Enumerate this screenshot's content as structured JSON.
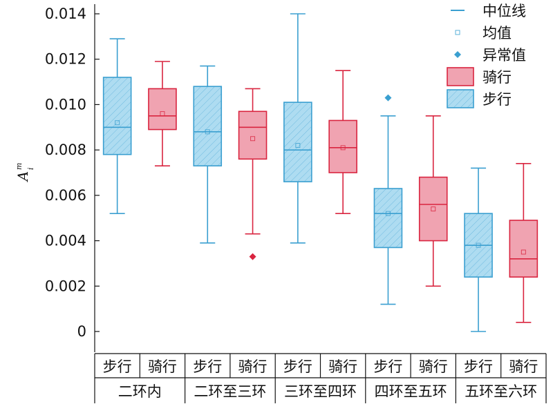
{
  "chart_data": {
    "type": "box",
    "ylabel": {
      "base": "A",
      "sup": "m",
      "sub": "i"
    },
    "ylim": [
      -0.0008,
      0.014
    ],
    "yticks": [
      "0.014",
      "0.012",
      "0.010",
      "0.008",
      "0.006",
      "0.004",
      "0.002",
      "0"
    ],
    "ytick_values": [
      0.014,
      0.012,
      0.01,
      0.008,
      0.006,
      0.004,
      0.002,
      0
    ],
    "series_colors": {
      "步行": {
        "fill": "#aedcf1",
        "stroke": "#3a9fd0",
        "hatch": true
      },
      "骑行": {
        "fill": "#f0a3b1",
        "stroke": "#d9243f",
        "hatch": false
      }
    },
    "legend": [
      {
        "label": "中位线",
        "kind": "median-line",
        "color": "#3a9fd0"
      },
      {
        "label": "均值",
        "kind": "mean-square",
        "color": "#5ab0d8"
      },
      {
        "label": "异常值",
        "kind": "outlier-diamond",
        "color": "#3a9fd0"
      },
      {
        "label": "骑行",
        "kind": "box",
        "series": "骑行"
      },
      {
        "label": "步行",
        "kind": "box",
        "series": "步行"
      }
    ],
    "groups": [
      {
        "label": "二环内",
        "members": [
          "步行",
          "骑行"
        ]
      },
      {
        "label": "二环至三环",
        "members": [
          "步行",
          "骑行"
        ]
      },
      {
        "label": "三环至四环",
        "members": [
          "步行",
          "骑行"
        ]
      },
      {
        "label": "四环至五环",
        "members": [
          "步行",
          "骑行"
        ]
      },
      {
        "label": "五环至六环",
        "members": [
          "步行",
          "骑行"
        ]
      }
    ],
    "boxes": [
      {
        "group": "二环内",
        "series": "步行",
        "min": 0.0052,
        "q1": 0.0078,
        "median": 0.009,
        "q3": 0.0112,
        "max": 0.0129,
        "mean": 0.0092,
        "outliers": []
      },
      {
        "group": "二环内",
        "series": "骑行",
        "min": 0.0073,
        "q1": 0.0089,
        "median": 0.0095,
        "q3": 0.0107,
        "max": 0.0119,
        "mean": 0.0096,
        "outliers": []
      },
      {
        "group": "二环至三环",
        "series": "步行",
        "min": 0.0039,
        "q1": 0.0073,
        "median": 0.0088,
        "q3": 0.0108,
        "max": 0.0117,
        "mean": 0.0088,
        "outliers": []
      },
      {
        "group": "二环至三环",
        "series": "骑行",
        "min": 0.0043,
        "q1": 0.0076,
        "median": 0.009,
        "q3": 0.0097,
        "max": 0.0107,
        "mean": 0.0085,
        "outliers": [
          0.0033
        ]
      },
      {
        "group": "三环至四环",
        "series": "步行",
        "min": 0.0039,
        "q1": 0.0066,
        "median": 0.008,
        "q3": 0.0101,
        "max": 0.014,
        "mean": 0.0082,
        "outliers": []
      },
      {
        "group": "三环至四环",
        "series": "骑行",
        "min": 0.0052,
        "q1": 0.007,
        "median": 0.0081,
        "q3": 0.0093,
        "max": 0.0115,
        "mean": 0.0081,
        "outliers": []
      },
      {
        "group": "四环至五环",
        "series": "步行",
        "min": 0.0012,
        "q1": 0.0037,
        "median": 0.0052,
        "q3": 0.0063,
        "max": 0.0095,
        "mean": 0.0052,
        "outliers": [
          0.0103
        ]
      },
      {
        "group": "四环至五环",
        "series": "骑行",
        "min": 0.002,
        "q1": 0.004,
        "median": 0.0056,
        "q3": 0.0068,
        "max": 0.0095,
        "mean": 0.0054,
        "outliers": []
      },
      {
        "group": "五环至六环",
        "series": "步行",
        "min": 0.0,
        "q1": 0.0024,
        "median": 0.0038,
        "q3": 0.0052,
        "max": 0.0072,
        "mean": 0.0038,
        "outliers": []
      },
      {
        "group": "五环至六环",
        "series": "骑行",
        "min": 0.0004,
        "q1": 0.0024,
        "median": 0.0032,
        "q3": 0.0049,
        "max": 0.0074,
        "mean": 0.0035,
        "outliers": []
      }
    ]
  }
}
